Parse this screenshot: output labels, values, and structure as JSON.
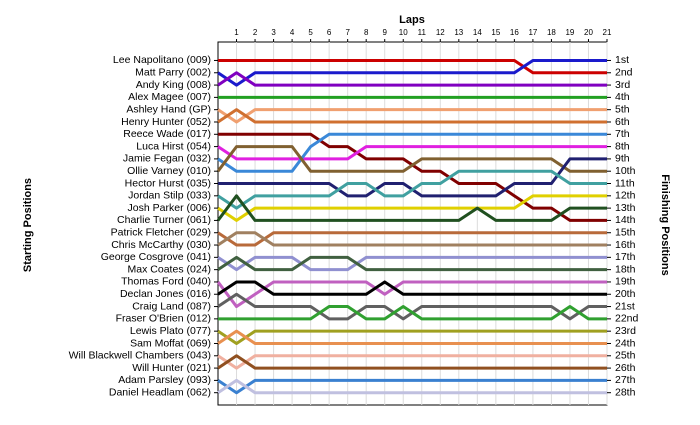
{
  "chart_data": {
    "type": "line",
    "x_label": "Laps",
    "y_label": "Starting Positions",
    "y2_label": "Finishing Positions",
    "x": [
      0,
      1,
      2,
      3,
      4,
      5,
      6,
      7,
      8,
      9,
      10,
      11,
      12,
      13,
      14,
      15,
      16,
      17,
      18,
      19,
      20,
      21
    ],
    "xlim": [
      0,
      21
    ],
    "xticks": [
      1,
      2,
      3,
      4,
      5,
      6,
      7,
      8,
      9,
      10,
      11,
      12,
      13,
      14,
      15,
      16,
      17,
      18,
      19,
      20,
      21
    ],
    "ylim": [
      29,
      -0.5
    ],
    "grid": true,
    "y2ticks": [
      {
        "value": 1,
        "label": "1st"
      },
      {
        "value": 2,
        "label": "2nd"
      },
      {
        "value": 3,
        "label": "3rd"
      },
      {
        "value": 4,
        "label": "4th"
      },
      {
        "value": 5,
        "label": "5th"
      },
      {
        "value": 6,
        "label": "6th"
      },
      {
        "value": 7,
        "label": "7th"
      },
      {
        "value": 8,
        "label": "8th"
      },
      {
        "value": 9,
        "label": "9th"
      },
      {
        "value": 10,
        "label": "10th"
      },
      {
        "value": 11,
        "label": "11th"
      },
      {
        "value": 12,
        "label": "12th"
      },
      {
        "value": 13,
        "label": "13th"
      },
      {
        "value": 14,
        "label": "14th"
      },
      {
        "value": 15,
        "label": "15th"
      },
      {
        "value": 16,
        "label": "16th"
      },
      {
        "value": 17,
        "label": "17th"
      },
      {
        "value": 18,
        "label": "18th"
      },
      {
        "value": 19,
        "label": "19th"
      },
      {
        "value": 20,
        "label": "20th"
      },
      {
        "value": 21,
        "label": "21st"
      },
      {
        "value": 22,
        "label": "22nd"
      },
      {
        "value": 23,
        "label": "23rd"
      },
      {
        "value": 24,
        "label": "24th"
      },
      {
        "value": 25,
        "label": "25th"
      },
      {
        "value": 26,
        "label": "26th"
      },
      {
        "value": 27,
        "label": "27th"
      },
      {
        "value": 28,
        "label": "28th"
      }
    ],
    "series": [
      {
        "name": "Lee Napolitano (009)",
        "color": "#cc0000",
        "values": [
          1,
          1,
          1,
          1,
          1,
          1,
          1,
          1,
          1,
          1,
          1,
          1,
          1,
          1,
          1,
          1,
          1,
          2,
          2,
          2,
          2,
          2
        ]
      },
      {
        "name": "Matt Parry (002)",
        "color": "#1a1acc",
        "values": [
          2,
          3,
          2,
          2,
          2,
          2,
          2,
          2,
          2,
          2,
          2,
          2,
          2,
          2,
          2,
          2,
          2,
          1,
          1,
          1,
          1,
          1
        ]
      },
      {
        "name": "Andy King (008)",
        "color": "#8000c0",
        "values": [
          3,
          2,
          3,
          3,
          3,
          3,
          3,
          3,
          3,
          3,
          3,
          3,
          3,
          3,
          3,
          3,
          3,
          3,
          3,
          3,
          3,
          3
        ]
      },
      {
        "name": "Alex Magee (007)",
        "color": "#22a022",
        "values": [
          4,
          4,
          4,
          4,
          4,
          4,
          4,
          4,
          4,
          4,
          4,
          4,
          4,
          4,
          4,
          4,
          4,
          4,
          4,
          4,
          4,
          4
        ]
      },
      {
        "name": "Ashley Hand (GP)",
        "color": "#f0a070",
        "values": [
          5,
          6,
          5,
          5,
          5,
          5,
          5,
          5,
          5,
          5,
          5,
          5,
          5,
          5,
          5,
          5,
          5,
          5,
          5,
          5,
          5,
          5
        ]
      },
      {
        "name": "Henry Hunter (052)",
        "color": "#d07030",
        "values": [
          6,
          5,
          6,
          6,
          6,
          6,
          6,
          6,
          6,
          6,
          6,
          6,
          6,
          6,
          6,
          6,
          6,
          6,
          6,
          6,
          6,
          6
        ]
      },
      {
        "name": "Reece Wade (017)",
        "color": "#800000",
        "values": [
          7,
          7,
          7,
          7,
          7,
          7,
          8,
          8,
          9,
          9,
          9,
          10,
          10,
          11,
          11,
          11,
          12,
          13,
          13,
          14,
          14,
          14
        ]
      },
      {
        "name": "Luca Hirst (054)",
        "color": "#e020e0",
        "values": [
          8,
          9,
          9,
          9,
          9,
          9,
          9,
          9,
          8,
          8,
          8,
          8,
          8,
          8,
          8,
          8,
          8,
          8,
          8,
          8,
          8,
          8
        ]
      },
      {
        "name": "Jamie Fegan (032)",
        "color": "#3a88d8",
        "values": [
          9,
          10,
          10,
          10,
          10,
          8,
          7,
          7,
          7,
          7,
          7,
          7,
          7,
          7,
          7,
          7,
          7,
          7,
          7,
          7,
          7,
          7
        ]
      },
      {
        "name": "Ollie Varney (010)",
        "color": "#806030",
        "values": [
          10,
          8,
          8,
          8,
          8,
          10,
          10,
          10,
          10,
          10,
          10,
          9,
          9,
          9,
          9,
          9,
          9,
          9,
          9,
          10,
          10,
          10
        ]
      },
      {
        "name": "Hector Hurst (035)",
        "color": "#202070",
        "values": [
          11,
          11,
          11,
          11,
          11,
          11,
          11,
          12,
          12,
          11,
          11,
          12,
          12,
          12,
          12,
          12,
          11,
          11,
          11,
          9,
          9,
          9
        ]
      },
      {
        "name": "Jordan Stilp (033)",
        "color": "#40a0a0",
        "values": [
          12,
          13,
          12,
          12,
          12,
          12,
          12,
          11,
          11,
          12,
          12,
          11,
          11,
          10,
          10,
          10,
          10,
          10,
          10,
          11,
          11,
          11
        ]
      },
      {
        "name": "Josh Parker (006)",
        "color": "#e0d000",
        "values": [
          13,
          14,
          13,
          13,
          13,
          13,
          13,
          13,
          13,
          13,
          13,
          13,
          13,
          13,
          13,
          13,
          13,
          12,
          12,
          12,
          12,
          12
        ]
      },
      {
        "name": "Charlie Turner (061)",
        "color": "#205020",
        "values": [
          14,
          12,
          14,
          14,
          14,
          14,
          14,
          14,
          14,
          14,
          14,
          14,
          14,
          14,
          13,
          14,
          14,
          14,
          14,
          13,
          13,
          13
        ]
      },
      {
        "name": "Patrick Fletcher (029)",
        "color": "#b86a3a",
        "values": [
          15,
          16,
          16,
          15,
          15,
          15,
          15,
          15,
          15,
          15,
          15,
          15,
          15,
          15,
          15,
          15,
          15,
          15,
          15,
          15,
          15,
          15
        ]
      },
      {
        "name": "Chris McCarthy (030)",
        "color": "#a08060",
        "values": [
          16,
          15,
          15,
          16,
          16,
          16,
          16,
          16,
          16,
          16,
          16,
          16,
          16,
          16,
          16,
          16,
          16,
          16,
          16,
          16,
          16,
          16
        ]
      },
      {
        "name": "George Cosgrove (041)",
        "color": "#9090d0",
        "values": [
          17,
          18,
          17,
          17,
          17,
          18,
          18,
          18,
          17,
          17,
          17,
          17,
          17,
          17,
          17,
          17,
          17,
          17,
          17,
          17,
          17,
          17
        ]
      },
      {
        "name": "Max Coates (024)",
        "color": "#406040",
        "values": [
          18,
          17,
          18,
          18,
          18,
          17,
          17,
          17,
          18,
          18,
          18,
          18,
          18,
          18,
          18,
          18,
          18,
          18,
          18,
          18,
          18,
          18
        ]
      },
      {
        "name": "Thomas Ford (040)",
        "color": "#c060c0",
        "values": [
          19,
          21,
          20,
          19,
          19,
          19,
          19,
          19,
          19,
          20,
          19,
          19,
          19,
          19,
          19,
          19,
          19,
          19,
          19,
          19,
          19,
          19
        ]
      },
      {
        "name": "Declan Jones (016)",
        "color": "#000000",
        "values": [
          20,
          19,
          19,
          20,
          20,
          20,
          20,
          20,
          20,
          19,
          20,
          20,
          20,
          20,
          20,
          20,
          20,
          20,
          20,
          20,
          20,
          20
        ]
      },
      {
        "name": "Craig Land (087)",
        "color": "#606060",
        "values": [
          21,
          20,
          21,
          21,
          21,
          21,
          22,
          22,
          21,
          21,
          22,
          21,
          21,
          21,
          21,
          21,
          21,
          21,
          21,
          22,
          21,
          21
        ]
      },
      {
        "name": "Fraser O'Brien (012)",
        "color": "#30a030",
        "values": [
          22,
          22,
          22,
          22,
          22,
          22,
          21,
          21,
          22,
          22,
          21,
          22,
          22,
          22,
          22,
          22,
          22,
          22,
          22,
          21,
          22,
          22
        ]
      },
      {
        "name": "Lewis Plato (077)",
        "color": "#a0a020",
        "values": [
          23,
          24,
          23,
          23,
          23,
          23,
          23,
          23,
          23,
          23,
          23,
          23,
          23,
          23,
          23,
          23,
          23,
          23,
          23,
          23,
          23,
          23
        ]
      },
      {
        "name": "Sam Moffat (069)",
        "color": "#e89050",
        "values": [
          24,
          23,
          24,
          24,
          24,
          24,
          24,
          24,
          24,
          24,
          24,
          24,
          24,
          24,
          24,
          24,
          24,
          24,
          24,
          24,
          24,
          24
        ]
      },
      {
        "name": "Will Blackwell Chambers (043)",
        "color": "#f0b0a0",
        "values": [
          25,
          26,
          25,
          25,
          25,
          25,
          25,
          25,
          25,
          25,
          25,
          25,
          25,
          25,
          25,
          25,
          25,
          25,
          25,
          25,
          25,
          25
        ]
      },
      {
        "name": "Will Hunter (021)",
        "color": "#905020",
        "values": [
          26,
          25,
          26,
          26,
          26,
          26,
          26,
          26,
          26,
          26,
          26,
          26,
          26,
          26,
          26,
          26,
          26,
          26,
          26,
          26,
          26,
          26
        ]
      },
      {
        "name": "Adam Parsley (093)",
        "color": "#3a80d0",
        "values": [
          27,
          28,
          27,
          27,
          27,
          27,
          27,
          27,
          27,
          27,
          27,
          27,
          27,
          27,
          27,
          27,
          27,
          27,
          27,
          27,
          27,
          27
        ]
      },
      {
        "name": "Daniel Headlam (062)",
        "color": "#c0c0e0",
        "values": [
          28,
          27,
          28,
          28,
          28,
          28,
          28,
          28,
          28,
          28,
          28,
          28,
          28,
          28,
          28,
          28,
          28,
          28,
          28,
          28,
          28,
          28
        ]
      }
    ]
  }
}
